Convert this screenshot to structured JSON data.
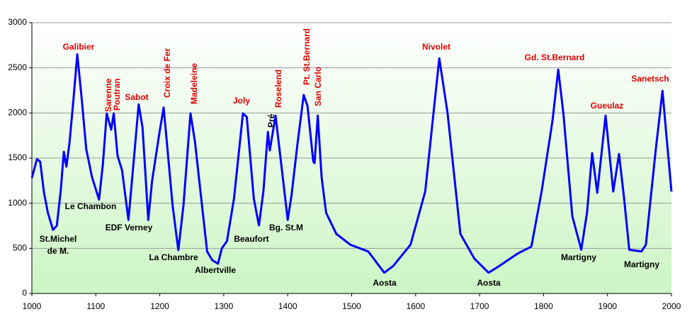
{
  "chart_data": {
    "type": "line",
    "xlim": [
      1000,
      2000
    ],
    "ylim": [
      0,
      3000
    ],
    "xticks": [
      1000,
      1100,
      1200,
      1300,
      1400,
      1500,
      1600,
      1700,
      1800,
      1900,
      2000
    ],
    "yticks": [
      0,
      500,
      1000,
      1500,
      2000,
      2500,
      3000
    ],
    "grid": true,
    "series": [
      {
        "color": "#0000ff",
        "x": [
          1000,
          1008,
          1013,
          1019,
          1025,
          1033,
          1039,
          1045,
          1050,
          1054,
          1059,
          1065,
          1071,
          1078,
          1085,
          1094,
          1105,
          1111,
          1117,
          1124,
          1128,
          1134,
          1141,
          1151,
          1157,
          1167,
          1173,
          1182,
          1188,
          1199,
          1206,
          1211,
          1220,
          1229,
          1237,
          1248,
          1255,
          1266,
          1274,
          1282,
          1291,
          1297,
          1305,
          1316,
          1330,
          1336,
          1347,
          1355,
          1362,
          1369,
          1372,
          1381,
          1391,
          1400,
          1406,
          1415,
          1425,
          1431,
          1440,
          1442,
          1447,
          1453,
          1460,
          1476,
          1498,
          1526,
          1551,
          1565,
          1592,
          1615,
          1637,
          1650,
          1670,
          1692,
          1714,
          1731,
          1759,
          1781,
          1797,
          1814,
          1823,
          1831,
          1845,
          1859,
          1868,
          1876,
          1884,
          1897,
          1909,
          1918,
          1926,
          1934,
          1953,
          1960,
          1975,
          1986,
          1992,
          2000
        ],
        "values": [
          1280,
          1490,
          1460,
          1115,
          895,
          705,
          750,
          1130,
          1570,
          1405,
          1680,
          2150,
          2650,
          2150,
          1600,
          1290,
          1040,
          1430,
          1995,
          1815,
          1995,
          1525,
          1365,
          815,
          1290,
          2095,
          1840,
          815,
          1250,
          1760,
          2060,
          1680,
          975,
          480,
          975,
          1995,
          1680,
          975,
          465,
          370,
          330,
          500,
          580,
          1050,
          1995,
          1955,
          1050,
          755,
          1130,
          1790,
          1585,
          1970,
          1365,
          815,
          1090,
          1640,
          2200,
          2075,
          1460,
          1445,
          1970,
          1290,
          895,
          660,
          540,
          465,
          230,
          305,
          540,
          1130,
          2605,
          1995,
          660,
          385,
          230,
          305,
          440,
          520,
          1130,
          1915,
          2480,
          1995,
          855,
          485,
          895,
          1555,
          1115,
          1970,
          1130,
          1545,
          1050,
          485,
          465,
          540,
          1565,
          2245,
          1760,
          1130
        ]
      }
    ],
    "annotations": [
      {
        "text": "Galibier",
        "color": "#e00000"
      },
      {
        "text": "Sarenne",
        "color": "#e00000"
      },
      {
        "text": "Poutran",
        "color": "#e00000"
      },
      {
        "text": "Sabot",
        "color": "#e00000"
      },
      {
        "text": "Croix de Fer",
        "color": "#e00000"
      },
      {
        "text": "Madeleine",
        "color": "#e00000"
      },
      {
        "text": "Joly",
        "color": "#e00000"
      },
      {
        "text": "Pré",
        "color": "#000000"
      },
      {
        "text": "Roselend",
        "color": "#e00000"
      },
      {
        "text": "Pt. St.Bernard",
        "color": "#e00000"
      },
      {
        "text": "San Carlo",
        "color": "#e00000"
      },
      {
        "text": "Nivolet",
        "color": "#e00000"
      },
      {
        "text": "Gd. St.Bernard",
        "color": "#e00000"
      },
      {
        "text": "Gueulaz",
        "color": "#e00000"
      },
      {
        "text": "Sanetsch",
        "color": "#e00000"
      },
      {
        "text": "Le Chambon",
        "color": "#000000"
      },
      {
        "text": "St.Michel",
        "color": "#000000"
      },
      {
        "text": "de M.",
        "color": "#000000"
      },
      {
        "text": "EDF Verney",
        "color": "#000000"
      },
      {
        "text": "La Chambre",
        "color": "#000000"
      },
      {
        "text": "Albertville",
        "color": "#000000"
      },
      {
        "text": "Beaufort",
        "color": "#000000"
      },
      {
        "text": "Bg. St.M",
        "color": "#000000"
      },
      {
        "text": "Aosta",
        "color": "#000000"
      },
      {
        "text": "Aosta",
        "color": "#000000"
      },
      {
        "text": "Martigny",
        "color": "#000000"
      },
      {
        "text": "Martigny",
        "color": "#000000"
      }
    ]
  }
}
